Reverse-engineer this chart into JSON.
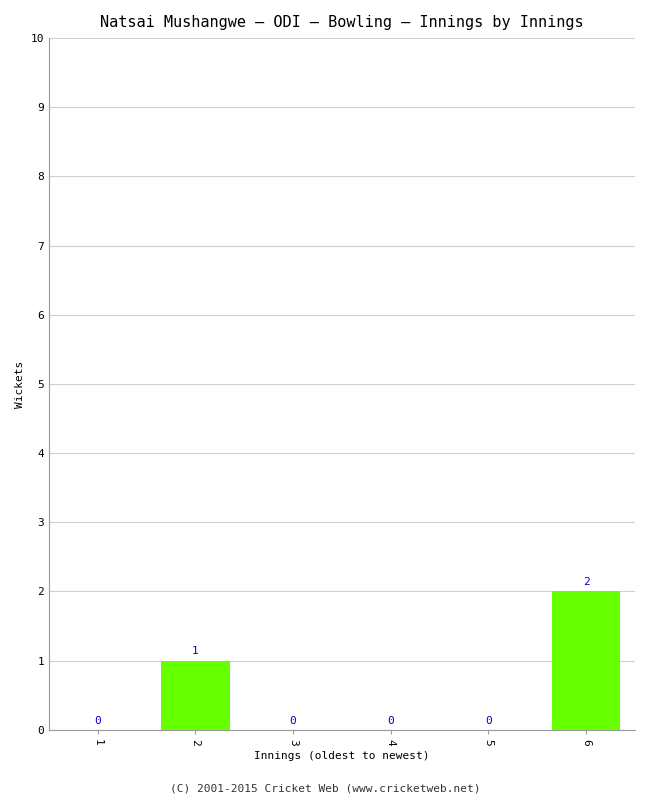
{
  "title": "Natsai Mushangwe – ODI – Bowling – Innings by Innings",
  "xlabel": "Innings (oldest to newest)",
  "ylabel": "Wickets",
  "categories": [
    "1",
    "2",
    "3",
    "4",
    "5",
    "6"
  ],
  "values": [
    0,
    1,
    0,
    0,
    0,
    2
  ],
  "bar_color": "#66ff00",
  "label_color": "#0000cc",
  "ylim": [
    0,
    10
  ],
  "yticks": [
    0,
    1,
    2,
    3,
    4,
    5,
    6,
    7,
    8,
    9,
    10
  ],
  "background_color": "#ffffff",
  "plot_bg_color": "#ffffff",
  "footer": "(C) 2001-2015 Cricket Web (www.cricketweb.net)",
  "title_fontsize": 11,
  "axis_label_fontsize": 8,
  "tick_fontsize": 8,
  "annotation_fontsize": 8,
  "footer_fontsize": 8,
  "grid_color": "#d0d0d0"
}
